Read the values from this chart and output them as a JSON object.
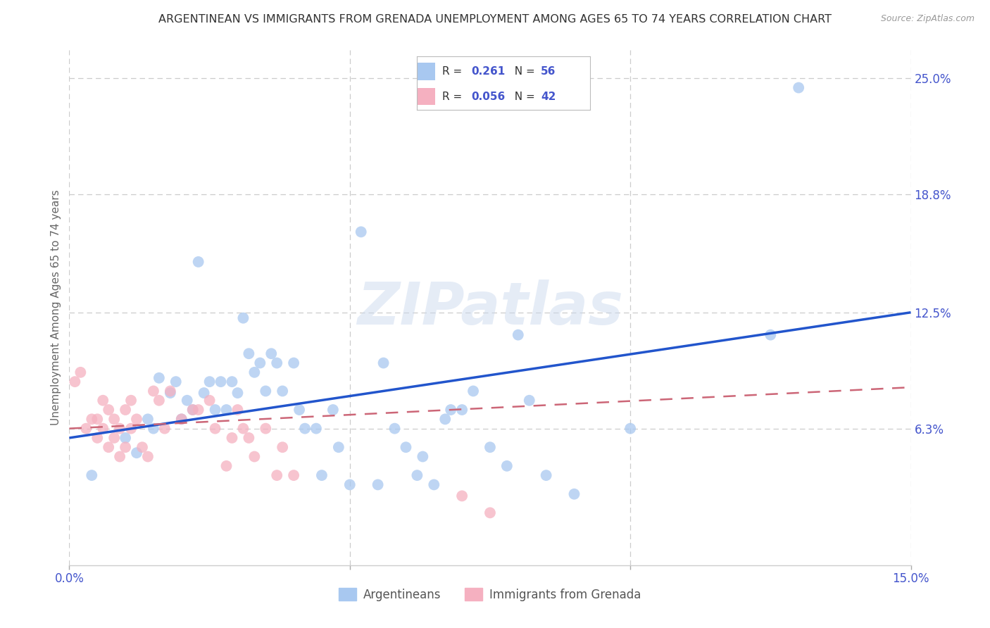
{
  "title": "ARGENTINEAN VS IMMIGRANTS FROM GRENADA UNEMPLOYMENT AMONG AGES 65 TO 74 YEARS CORRELATION CHART",
  "source": "Source: ZipAtlas.com",
  "ylabel": "Unemployment Among Ages 65 to 74 years",
  "xmin": 0.0,
  "xmax": 0.15,
  "ymin": -0.01,
  "ymax": 0.265,
  "xticks": [
    0.0,
    0.05,
    0.1,
    0.15
  ],
  "xtick_labels": [
    "0.0%",
    "",
    "",
    "15.0%"
  ],
  "ytick_values_right": [
    0.063,
    0.125,
    0.188,
    0.25
  ],
  "ytick_labels_right": [
    "6.3%",
    "12.5%",
    "18.8%",
    "25.0%"
  ],
  "watermark": "ZIPatlas",
  "legend_r1": "0.261",
  "legend_n1": "56",
  "legend_r2": "0.056",
  "legend_n2": "42",
  "blue_scatter_x": [
    0.004,
    0.01,
    0.012,
    0.014,
    0.015,
    0.016,
    0.018,
    0.019,
    0.02,
    0.021,
    0.022,
    0.023,
    0.024,
    0.025,
    0.026,
    0.027,
    0.028,
    0.029,
    0.03,
    0.031,
    0.032,
    0.033,
    0.034,
    0.035,
    0.036,
    0.037,
    0.038,
    0.04,
    0.041,
    0.042,
    0.044,
    0.045,
    0.047,
    0.048,
    0.05,
    0.052,
    0.055,
    0.056,
    0.058,
    0.06,
    0.062,
    0.063,
    0.065,
    0.067,
    0.068,
    0.07,
    0.072,
    0.075,
    0.078,
    0.08,
    0.082,
    0.085,
    0.09,
    0.1,
    0.125,
    0.13
  ],
  "blue_scatter_y": [
    0.038,
    0.058,
    0.05,
    0.068,
    0.063,
    0.09,
    0.082,
    0.088,
    0.068,
    0.078,
    0.073,
    0.152,
    0.082,
    0.088,
    0.073,
    0.088,
    0.073,
    0.088,
    0.082,
    0.122,
    0.103,
    0.093,
    0.098,
    0.083,
    0.103,
    0.098,
    0.083,
    0.098,
    0.073,
    0.063,
    0.063,
    0.038,
    0.073,
    0.053,
    0.033,
    0.168,
    0.033,
    0.098,
    0.063,
    0.053,
    0.038,
    0.048,
    0.033,
    0.068,
    0.073,
    0.073,
    0.083,
    0.053,
    0.043,
    0.113,
    0.078,
    0.038,
    0.028,
    0.063,
    0.113,
    0.245
  ],
  "pink_scatter_x": [
    0.001,
    0.002,
    0.003,
    0.004,
    0.005,
    0.005,
    0.006,
    0.006,
    0.007,
    0.007,
    0.008,
    0.008,
    0.009,
    0.009,
    0.01,
    0.01,
    0.011,
    0.011,
    0.012,
    0.013,
    0.014,
    0.015,
    0.016,
    0.017,
    0.018,
    0.02,
    0.022,
    0.023,
    0.025,
    0.026,
    0.028,
    0.029,
    0.03,
    0.031,
    0.032,
    0.033,
    0.035,
    0.037,
    0.038,
    0.04,
    0.07,
    0.075
  ],
  "pink_scatter_y": [
    0.088,
    0.093,
    0.063,
    0.068,
    0.068,
    0.058,
    0.078,
    0.063,
    0.073,
    0.053,
    0.068,
    0.058,
    0.063,
    0.048,
    0.073,
    0.053,
    0.078,
    0.063,
    0.068,
    0.053,
    0.048,
    0.083,
    0.078,
    0.063,
    0.083,
    0.068,
    0.073,
    0.073,
    0.078,
    0.063,
    0.043,
    0.058,
    0.073,
    0.063,
    0.058,
    0.048,
    0.063,
    0.038,
    0.053,
    0.038,
    0.027,
    0.018
  ],
  "blue_line_x": [
    0.0,
    0.15
  ],
  "blue_line_y": [
    0.058,
    0.125
  ],
  "pink_line_x": [
    0.0,
    0.15
  ],
  "pink_line_y": [
    0.063,
    0.085
  ],
  "blue_scatter_color": "#a8c8f0",
  "blue_line_color": "#2255cc",
  "pink_scatter_color": "#f5b0c0",
  "pink_line_color": "#cc6677",
  "scatter_size": 130,
  "scatter_alpha": 0.75,
  "background_color": "#ffffff",
  "grid_color": "#cccccc",
  "title_color": "#333333",
  "axis_tick_color": "#4455cc",
  "ylabel_color": "#666666"
}
